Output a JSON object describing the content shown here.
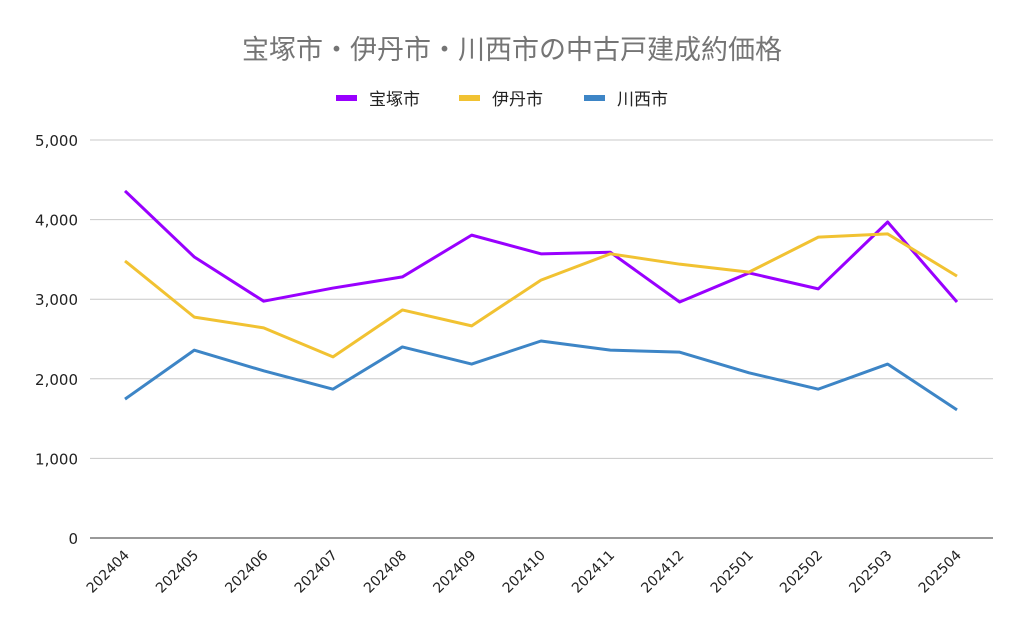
{
  "chart_data": {
    "type": "line",
    "title": "宝塚市・伊丹市・川西市の中古戸建成約価格",
    "xlabel": "",
    "ylabel": "",
    "ylim": [
      0,
      5000
    ],
    "yticks": [
      0,
      1000,
      2000,
      3000,
      4000,
      5000
    ],
    "ytick_labels": [
      "0",
      "1,000",
      "2,000",
      "3,000",
      "4,000",
      "5,000"
    ],
    "grid": true,
    "legend": "top",
    "categories": [
      "202404",
      "202405",
      "202406",
      "202407",
      "202408",
      "202409",
      "202410",
      "202411",
      "202412",
      "202501",
      "202502",
      "202503",
      "202504"
    ],
    "series": [
      {
        "name": "宝塚市",
        "color": "#9900ff",
        "values": [
          4360,
          3530,
          2975,
          3140,
          3280,
          3805,
          3570,
          3590,
          2965,
          3330,
          3130,
          3970,
          2965
        ]
      },
      {
        "name": "伊丹市",
        "color": "#f1c232",
        "values": [
          3480,
          2775,
          2640,
          2275,
          2865,
          2665,
          3240,
          3570,
          3440,
          3340,
          3780,
          3820,
          3290
        ]
      },
      {
        "name": "川西市",
        "color": "#3d85c6",
        "values": [
          1745,
          2360,
          2100,
          1870,
          2400,
          2185,
          2475,
          2360,
          2335,
          2075,
          1870,
          2185,
          1610
        ]
      }
    ]
  }
}
